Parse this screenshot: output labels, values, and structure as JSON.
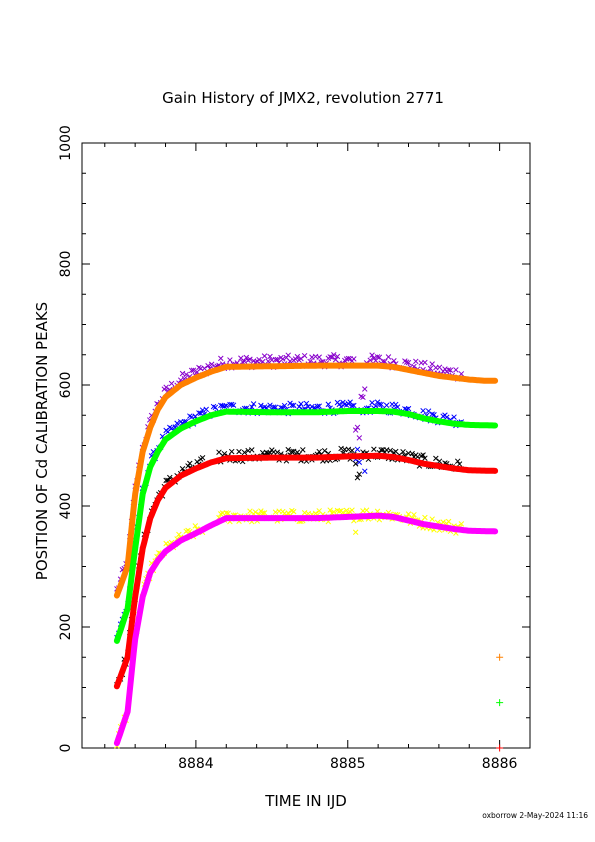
{
  "chart_data": {
    "type": "scatter",
    "title": "Gain History of JMX2, revolution 2771",
    "xlabel": "TIME IN IJD",
    "ylabel": "POSITION OF Cd CALIBRATION PEAKS",
    "xlim": [
      8883.25,
      8886.2
    ],
    "ylim": [
      0,
      1000
    ],
    "xticks": [
      "8884",
      "8885",
      "8886"
    ],
    "yticks": [
      "0",
      "200",
      "400",
      "600",
      "800",
      "1000"
    ],
    "footer": "oxborrow  2-May-2024 11:16",
    "grid": false,
    "smooth_series": [
      {
        "color": "#ff8000",
        "points": [
          [
            8883.48,
            252
          ],
          [
            8883.55,
            300
          ],
          [
            8883.6,
            420
          ],
          [
            8883.65,
            490
          ],
          [
            8883.7,
            530
          ],
          [
            8883.75,
            560
          ],
          [
            8883.8,
            580
          ],
          [
            8883.9,
            600
          ],
          [
            8884.0,
            612
          ],
          [
            8884.1,
            622
          ],
          [
            8884.2,
            630
          ],
          [
            8884.5,
            631
          ],
          [
            8884.8,
            632
          ],
          [
            8885.0,
            632
          ],
          [
            8885.2,
            632
          ],
          [
            8885.3,
            630
          ],
          [
            8885.4,
            625
          ],
          [
            8885.5,
            620
          ],
          [
            8885.6,
            615
          ],
          [
            8885.7,
            612
          ],
          [
            8885.8,
            609
          ],
          [
            8885.9,
            607
          ],
          [
            8885.98,
            607
          ]
        ]
      },
      {
        "color": "#00ff00",
        "points": [
          [
            8883.48,
            177
          ],
          [
            8883.55,
            230
          ],
          [
            8883.6,
            330
          ],
          [
            8883.65,
            420
          ],
          [
            8883.7,
            465
          ],
          [
            8883.75,
            490
          ],
          [
            8883.8,
            510
          ],
          [
            8883.9,
            528
          ],
          [
            8884.0,
            540
          ],
          [
            8884.1,
            550
          ],
          [
            8884.2,
            556
          ],
          [
            8884.5,
            555
          ],
          [
            8884.8,
            555
          ],
          [
            8885.0,
            557
          ],
          [
            8885.2,
            557
          ],
          [
            8885.3,
            556
          ],
          [
            8885.4,
            552
          ],
          [
            8885.5,
            545
          ],
          [
            8885.6,
            540
          ],
          [
            8885.7,
            536
          ],
          [
            8885.8,
            534
          ],
          [
            8885.98,
            533
          ]
        ]
      },
      {
        "color": "#ff0000",
        "points": [
          [
            8883.48,
            102
          ],
          [
            8883.55,
            150
          ],
          [
            8883.6,
            250
          ],
          [
            8883.65,
            330
          ],
          [
            8883.7,
            380
          ],
          [
            8883.75,
            410
          ],
          [
            8883.8,
            430
          ],
          [
            8883.9,
            450
          ],
          [
            8884.0,
            462
          ],
          [
            8884.1,
            472
          ],
          [
            8884.2,
            479
          ],
          [
            8884.5,
            480
          ],
          [
            8884.8,
            480
          ],
          [
            8885.0,
            482
          ],
          [
            8885.2,
            483
          ],
          [
            8885.3,
            481
          ],
          [
            8885.4,
            476
          ],
          [
            8885.5,
            470
          ],
          [
            8885.6,
            466
          ],
          [
            8885.7,
            462
          ],
          [
            8885.8,
            459
          ],
          [
            8885.98,
            458
          ]
        ]
      },
      {
        "color": "#ff00ff",
        "points": [
          [
            8883.48,
            8
          ],
          [
            8883.55,
            60
          ],
          [
            8883.6,
            180
          ],
          [
            8883.65,
            250
          ],
          [
            8883.7,
            290
          ],
          [
            8883.75,
            310
          ],
          [
            8883.8,
            325
          ],
          [
            8883.9,
            343
          ],
          [
            8884.0,
            355
          ],
          [
            8884.1,
            368
          ],
          [
            8884.2,
            380
          ],
          [
            8884.5,
            380
          ],
          [
            8884.8,
            380
          ],
          [
            8885.0,
            382
          ],
          [
            8885.2,
            384
          ],
          [
            8885.3,
            382
          ],
          [
            8885.4,
            376
          ],
          [
            8885.5,
            370
          ],
          [
            8885.6,
            366
          ],
          [
            8885.7,
            362
          ],
          [
            8885.8,
            359
          ],
          [
            8885.98,
            358
          ]
        ]
      }
    ],
    "point_series": [
      {
        "color": "#8800cc",
        "marker": "x",
        "offset": 8,
        "scatter": 10,
        "jump": [
          8885.05,
          8885.12,
          -180
        ]
      },
      {
        "color": "#0000ff",
        "marker": "x",
        "offset": 6,
        "scatter": 9,
        "jump": [
          8885.05,
          8885.12,
          -100
        ]
      },
      {
        "color": "#000000",
        "marker": "x",
        "offset": 4,
        "scatter": 10,
        "jump": [
          8885.05,
          8885.08,
          -50
        ]
      },
      {
        "color": "#ffff00",
        "marker": "x",
        "offset": 3,
        "scatter": 10,
        "jump": [
          8885.05,
          8885.08,
          -40
        ]
      }
    ],
    "outliers": [
      {
        "x": 8886.0,
        "y": 150,
        "color": "#ff8000",
        "marker": "+"
      },
      {
        "x": 8886.0,
        "y": 75,
        "color": "#00ff00",
        "marker": "+"
      },
      {
        "x": 8886.0,
        "y": 0,
        "color": "#ff0000",
        "marker": "+"
      }
    ]
  }
}
